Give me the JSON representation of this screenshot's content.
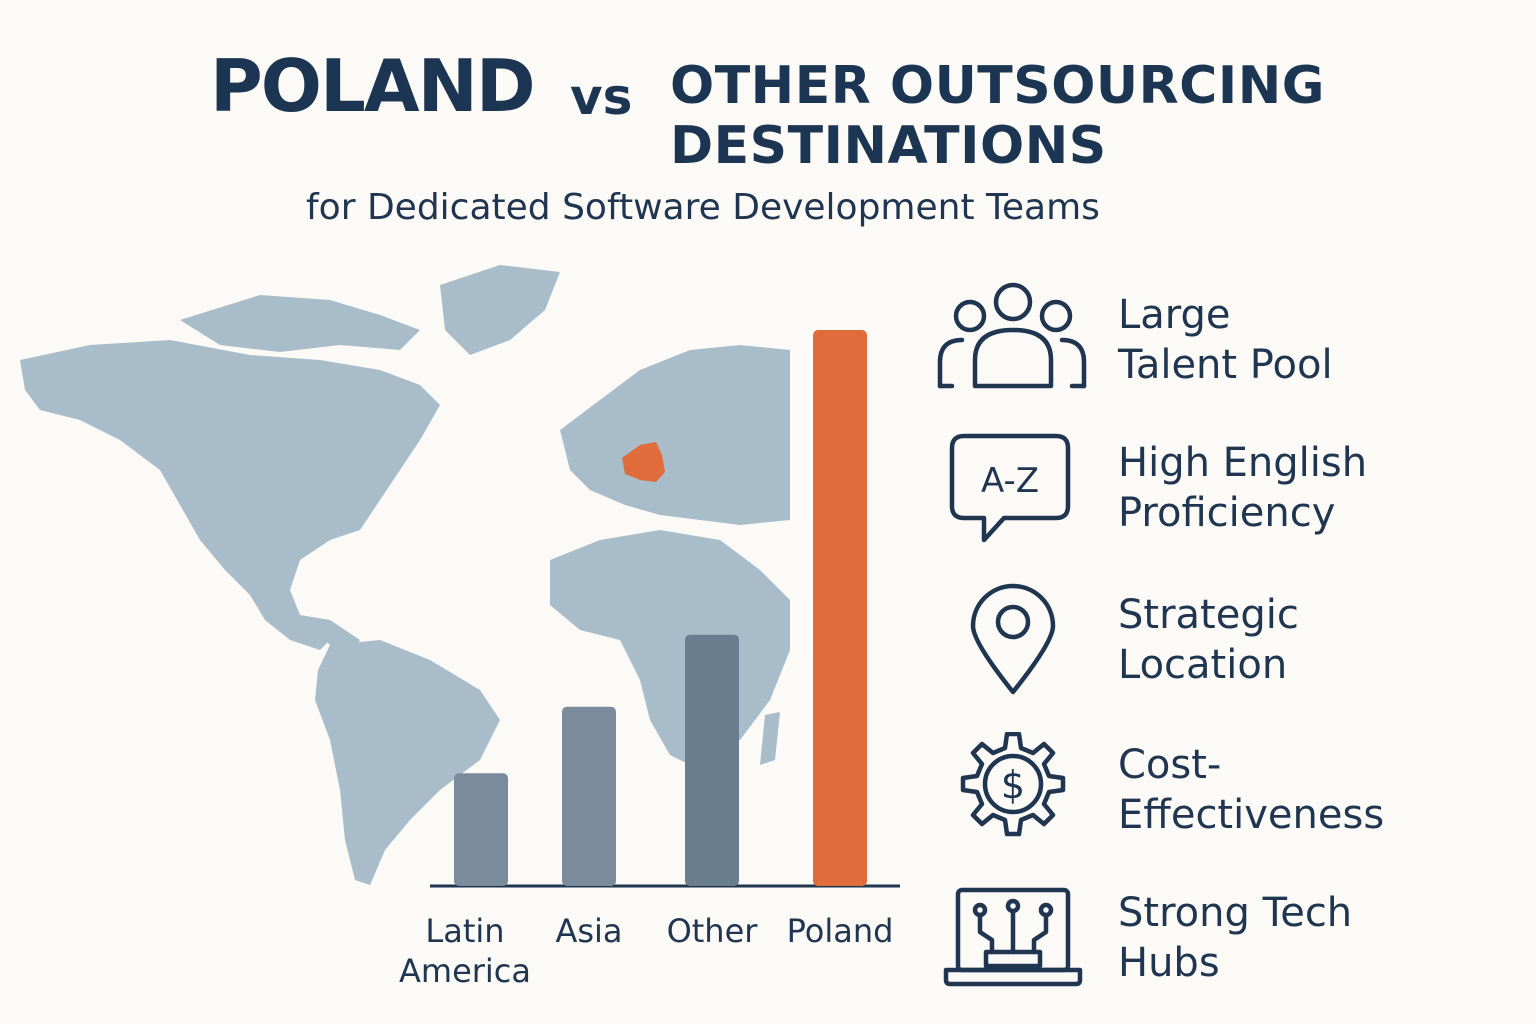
{
  "title": {
    "part1": "POLAND",
    "vs": "vs",
    "part2": "OTHER OUTSOURCING DESTINATIONS"
  },
  "subtitle": "for Dedicated Software Development Teams",
  "colors": {
    "navy": "#1c3552",
    "map": "#a8bcc9",
    "highlight": "#e06c3c",
    "bar_gray": "#7a8c9b",
    "bar_dark": "#6a7d8e"
  },
  "chart_data": {
    "type": "bar",
    "categories": [
      "Latin\nAmerica",
      "Asia",
      "Other",
      "Poland"
    ],
    "values": [
      20,
      32,
      45,
      100
    ],
    "xlabel": "",
    "ylabel": "",
    "ylim": [
      0,
      100
    ],
    "highlight": "Poland",
    "grid": false,
    "legend": "none"
  },
  "features": [
    {
      "label": "Large\nTalent Pool",
      "icon": "people-group-icon"
    },
    {
      "label": "High English\nProficiency",
      "icon": "a-z-speech-bubble-icon"
    },
    {
      "label": "Strategic\nLocation",
      "icon": "location-pin-icon"
    },
    {
      "label": "Cost-\nEffectiveness",
      "icon": "dollar-gear-icon"
    },
    {
      "label": "Strong Tech\nHubs",
      "icon": "laptop-circuit-icon"
    }
  ]
}
